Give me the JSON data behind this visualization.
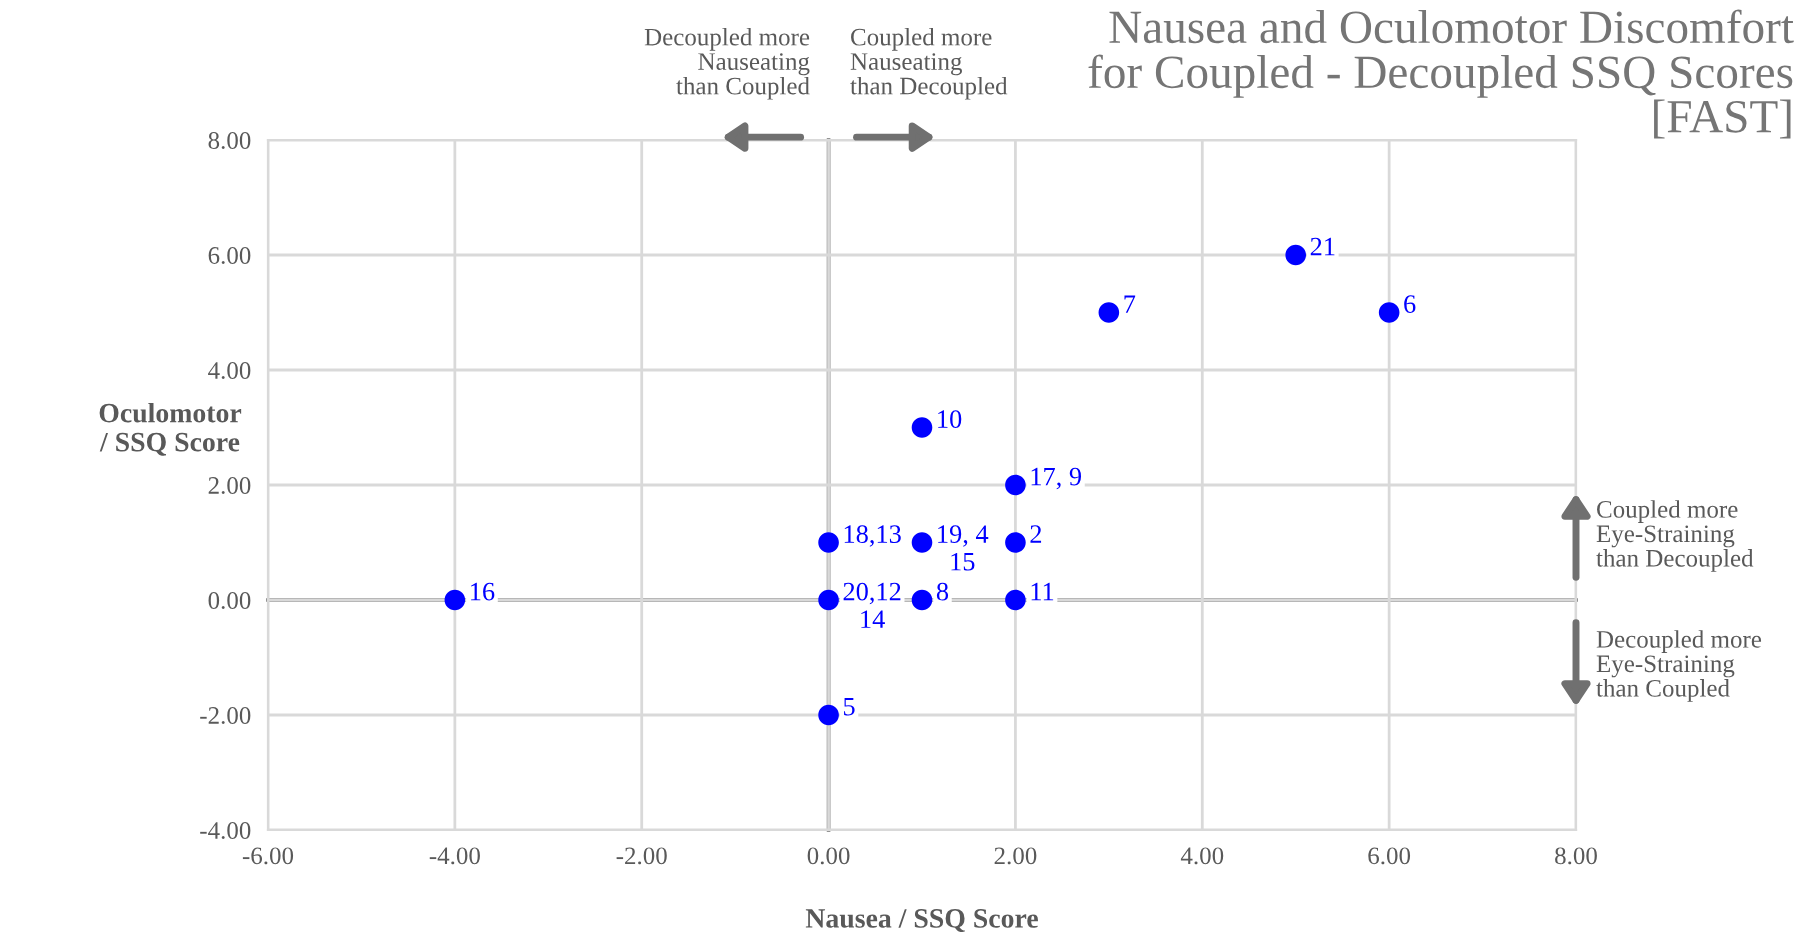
{
  "chart_data": {
    "type": "scatter",
    "title": "Nausea and Oculomotor Discomfort\nfor Coupled - Decoupled SSQ Scores\n[FAST]",
    "xlabel": "Nausea / SSQ Score",
    "ylabel": "Oculomotor\n/ SSQ Score",
    "x": [
      -4,
      0,
      1,
      2,
      2,
      0,
      1,
      2,
      0,
      1,
      3,
      5,
      6
    ],
    "series": [
      {
        "color": "#0000ff",
        "values": [
          0,
          1,
          1,
          1,
          2,
          0,
          0,
          0,
          -2,
          3,
          5,
          6,
          5
        ]
      }
    ],
    "xlim": [
      -6,
      8
    ],
    "ylim": [
      -4,
      8
    ],
    "xticks": [
      {
        "value": -6,
        "label": "-6.00"
      },
      {
        "value": -4,
        "label": "-4.00"
      },
      {
        "value": -2,
        "label": "-2.00"
      },
      {
        "value": 0,
        "label": "0.00"
      },
      {
        "value": 2,
        "label": "2.00"
      },
      {
        "value": 4,
        "label": "4.00"
      },
      {
        "value": 6,
        "label": "6.00"
      },
      {
        "value": 8,
        "label": "8.00"
      }
    ],
    "yticks": [
      {
        "value": -4,
        "label": "-4.00"
      },
      {
        "value": -2,
        "label": "-2.00"
      },
      {
        "value": 0,
        "label": "0.00"
      },
      {
        "value": 2,
        "label": "2.00"
      },
      {
        "value": 4,
        "label": "4.00"
      },
      {
        "value": 6,
        "label": "6.00"
      },
      {
        "value": 8,
        "label": "8.00"
      }
    ],
    "annotations": [
      "Decoupled more\nNauseating\nthan Coupled",
      "Coupled more\nNauseating\nthan Decoupled",
      "Coupled more\nEye-Straining\nthan Decoupled",
      "Decoupled more\nEye-Straining\nthan Coupled",
      {
        "text": "16",
        "x": -4,
        "y": 0
      },
      {
        "text": "18,13",
        "x": 0,
        "y": 1
      },
      {
        "text": "19, 4\n15",
        "x": 1,
        "y": 1
      },
      {
        "text": "2",
        "x": 2,
        "y": 1
      },
      {
        "text": "17, 9",
        "x": 2,
        "y": 2
      },
      {
        "text": "20,12\n14",
        "x": 0,
        "y": 0
      },
      {
        "text": "8",
        "x": 1,
        "y": 0
      },
      {
        "text": "11",
        "x": 2,
        "y": 0
      },
      {
        "text": "5",
        "x": 0,
        "y": -2
      },
      {
        "text": "10",
        "x": 1,
        "y": 3
      },
      {
        "text": "7",
        "x": 3,
        "y": 5
      },
      {
        "text": "21",
        "x": 5,
        "y": 6
      },
      {
        "text": "6",
        "x": 6,
        "y": 5
      }
    ],
    "grid": true,
    "marker": "circle"
  }
}
